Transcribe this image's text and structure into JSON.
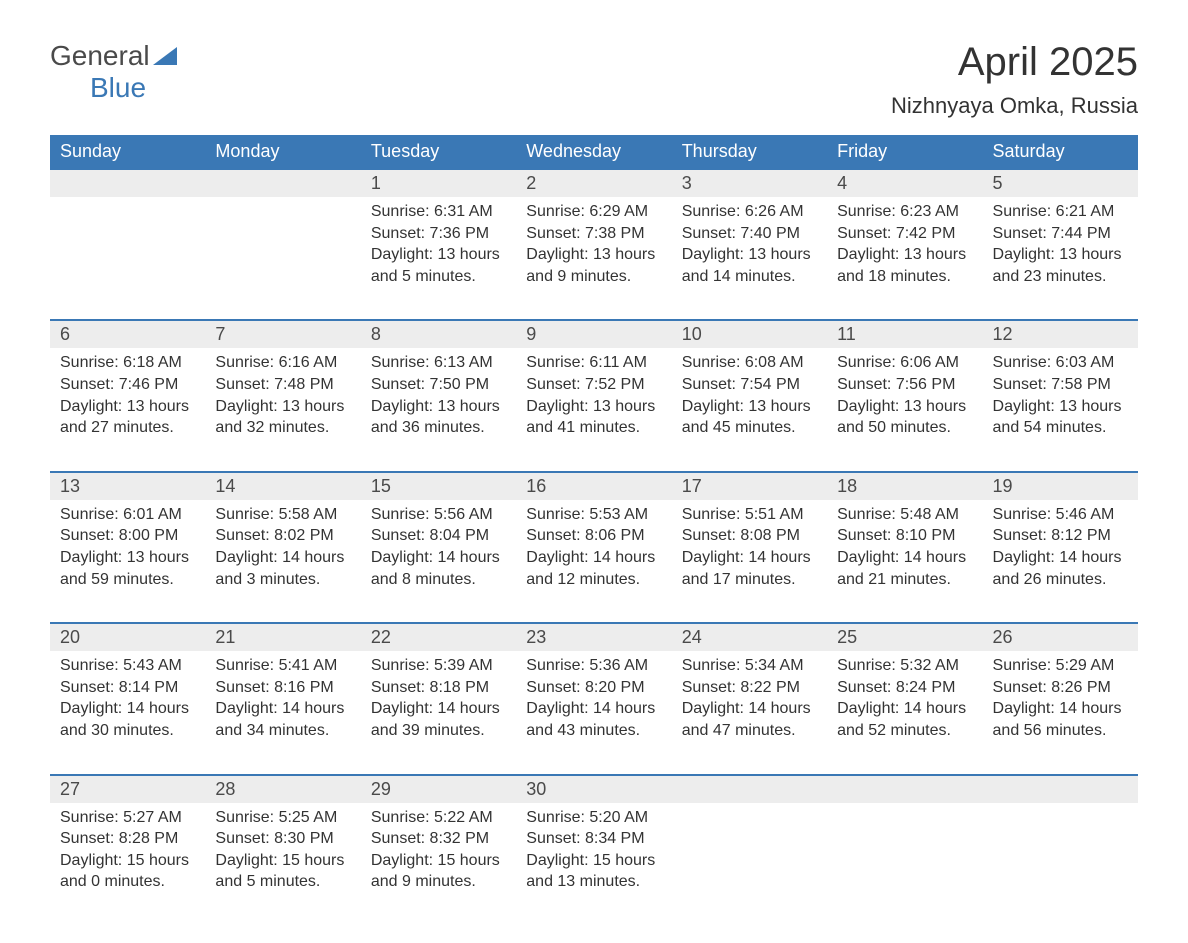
{
  "logo": {
    "text_general": "General",
    "text_blue": "Blue",
    "triangle_color": "#3a78b5"
  },
  "title": "April 2025",
  "location": "Nizhnyaya Omka, Russia",
  "colors": {
    "header_bg": "#3a78b5",
    "header_text": "#ffffff",
    "day_number_bg": "#ededed",
    "day_border_top": "#3a78b5",
    "body_text": "#333333",
    "background": "#ffffff"
  },
  "day_headers": [
    "Sunday",
    "Monday",
    "Tuesday",
    "Wednesday",
    "Thursday",
    "Friday",
    "Saturday"
  ],
  "weeks": [
    {
      "days": [
        {
          "num": "",
          "content": ""
        },
        {
          "num": "",
          "content": ""
        },
        {
          "num": "1",
          "content": "Sunrise: 6:31 AM\nSunset: 7:36 PM\nDaylight: 13 hours and 5 minutes."
        },
        {
          "num": "2",
          "content": "Sunrise: 6:29 AM\nSunset: 7:38 PM\nDaylight: 13 hours and 9 minutes."
        },
        {
          "num": "3",
          "content": "Sunrise: 6:26 AM\nSunset: 7:40 PM\nDaylight: 13 hours and 14 minutes."
        },
        {
          "num": "4",
          "content": "Sunrise: 6:23 AM\nSunset: 7:42 PM\nDaylight: 13 hours and 18 minutes."
        },
        {
          "num": "5",
          "content": "Sunrise: 6:21 AM\nSunset: 7:44 PM\nDaylight: 13 hours and 23 minutes."
        }
      ]
    },
    {
      "days": [
        {
          "num": "6",
          "content": "Sunrise: 6:18 AM\nSunset: 7:46 PM\nDaylight: 13 hours and 27 minutes."
        },
        {
          "num": "7",
          "content": "Sunrise: 6:16 AM\nSunset: 7:48 PM\nDaylight: 13 hours and 32 minutes."
        },
        {
          "num": "8",
          "content": "Sunrise: 6:13 AM\nSunset: 7:50 PM\nDaylight: 13 hours and 36 minutes."
        },
        {
          "num": "9",
          "content": "Sunrise: 6:11 AM\nSunset: 7:52 PM\nDaylight: 13 hours and 41 minutes."
        },
        {
          "num": "10",
          "content": "Sunrise: 6:08 AM\nSunset: 7:54 PM\nDaylight: 13 hours and 45 minutes."
        },
        {
          "num": "11",
          "content": "Sunrise: 6:06 AM\nSunset: 7:56 PM\nDaylight: 13 hours and 50 minutes."
        },
        {
          "num": "12",
          "content": "Sunrise: 6:03 AM\nSunset: 7:58 PM\nDaylight: 13 hours and 54 minutes."
        }
      ]
    },
    {
      "days": [
        {
          "num": "13",
          "content": "Sunrise: 6:01 AM\nSunset: 8:00 PM\nDaylight: 13 hours and 59 minutes."
        },
        {
          "num": "14",
          "content": "Sunrise: 5:58 AM\nSunset: 8:02 PM\nDaylight: 14 hours and 3 minutes."
        },
        {
          "num": "15",
          "content": "Sunrise: 5:56 AM\nSunset: 8:04 PM\nDaylight: 14 hours and 8 minutes."
        },
        {
          "num": "16",
          "content": "Sunrise: 5:53 AM\nSunset: 8:06 PM\nDaylight: 14 hours and 12 minutes."
        },
        {
          "num": "17",
          "content": "Sunrise: 5:51 AM\nSunset: 8:08 PM\nDaylight: 14 hours and 17 minutes."
        },
        {
          "num": "18",
          "content": "Sunrise: 5:48 AM\nSunset: 8:10 PM\nDaylight: 14 hours and 21 minutes."
        },
        {
          "num": "19",
          "content": "Sunrise: 5:46 AM\nSunset: 8:12 PM\nDaylight: 14 hours and 26 minutes."
        }
      ]
    },
    {
      "days": [
        {
          "num": "20",
          "content": "Sunrise: 5:43 AM\nSunset: 8:14 PM\nDaylight: 14 hours and 30 minutes."
        },
        {
          "num": "21",
          "content": "Sunrise: 5:41 AM\nSunset: 8:16 PM\nDaylight: 14 hours and 34 minutes."
        },
        {
          "num": "22",
          "content": "Sunrise: 5:39 AM\nSunset: 8:18 PM\nDaylight: 14 hours and 39 minutes."
        },
        {
          "num": "23",
          "content": "Sunrise: 5:36 AM\nSunset: 8:20 PM\nDaylight: 14 hours and 43 minutes."
        },
        {
          "num": "24",
          "content": "Sunrise: 5:34 AM\nSunset: 8:22 PM\nDaylight: 14 hours and 47 minutes."
        },
        {
          "num": "25",
          "content": "Sunrise: 5:32 AM\nSunset: 8:24 PM\nDaylight: 14 hours and 52 minutes."
        },
        {
          "num": "26",
          "content": "Sunrise: 5:29 AM\nSunset: 8:26 PM\nDaylight: 14 hours and 56 minutes."
        }
      ]
    },
    {
      "days": [
        {
          "num": "27",
          "content": "Sunrise: 5:27 AM\nSunset: 8:28 PM\nDaylight: 15 hours and 0 minutes."
        },
        {
          "num": "28",
          "content": "Sunrise: 5:25 AM\nSunset: 8:30 PM\nDaylight: 15 hours and 5 minutes."
        },
        {
          "num": "29",
          "content": "Sunrise: 5:22 AM\nSunset: 8:32 PM\nDaylight: 15 hours and 9 minutes."
        },
        {
          "num": "30",
          "content": "Sunrise: 5:20 AM\nSunset: 8:34 PM\nDaylight: 15 hours and 13 minutes."
        },
        {
          "num": "",
          "content": ""
        },
        {
          "num": "",
          "content": ""
        },
        {
          "num": "",
          "content": ""
        }
      ]
    }
  ]
}
